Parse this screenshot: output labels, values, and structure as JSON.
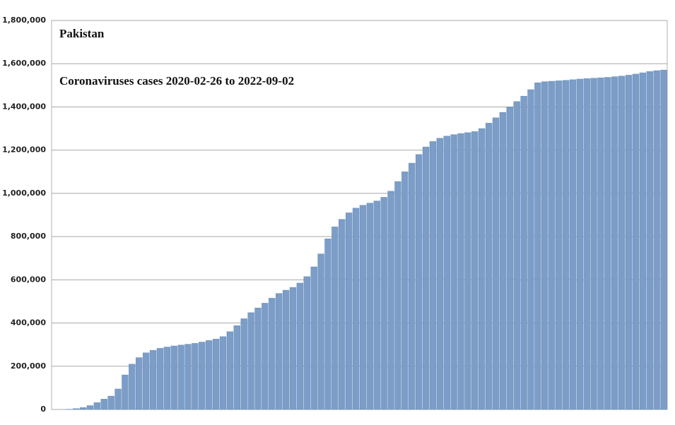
{
  "chart_data": {
    "type": "bar",
    "title": "Pakistan",
    "subtitle": "Coronaviruses cases 2020-02-26 to 2022-09-02",
    "color": "#7b9dc7",
    "grid": true,
    "ylim": [
      0,
      1800000
    ],
    "yticks": [
      0,
      {
        "value": 200000,
        "label": "200,000"
      },
      {
        "value": 400000,
        "label": "400,000"
      },
      {
        "value": 600000,
        "label": "600,000"
      },
      {
        "value": 800000,
        "label": "800,000"
      },
      {
        "value": 1000000,
        "label": "1,000,000"
      },
      {
        "value": 1200000,
        "label": "1,200,000"
      },
      {
        "value": 1400000,
        "label": "1,400,000"
      },
      {
        "value": 1600000,
        "label": "1,600,000"
      },
      {
        "value": 1800000,
        "label": "1,800,000"
      }
    ],
    "values": [
      0,
      0,
      1000,
      4000,
      9000,
      18000,
      32000,
      48000,
      62000,
      95000,
      160000,
      210000,
      240000,
      262000,
      274000,
      283000,
      289000,
      294000,
      298000,
      302000,
      306000,
      312000,
      319000,
      326000,
      337000,
      360000,
      388000,
      420000,
      448000,
      470000,
      492000,
      515000,
      537000,
      552000,
      565000,
      585000,
      615000,
      660000,
      720000,
      790000,
      845000,
      880000,
      910000,
      932000,
      945000,
      955000,
      965000,
      982000,
      1010000,
      1055000,
      1100000,
      1140000,
      1180000,
      1215000,
      1240000,
      1255000,
      1265000,
      1272000,
      1277000,
      1281000,
      1286000,
      1300000,
      1325000,
      1350000,
      1375000,
      1400000,
      1425000,
      1450000,
      1480000,
      1512000,
      1517000,
      1519000,
      1521000,
      1523000,
      1526000,
      1529000,
      1531000,
      1533000,
      1535000,
      1537000,
      1540000,
      1543000,
      1547000,
      1552000,
      1558000,
      1564000,
      1568000,
      1571000
    ]
  }
}
